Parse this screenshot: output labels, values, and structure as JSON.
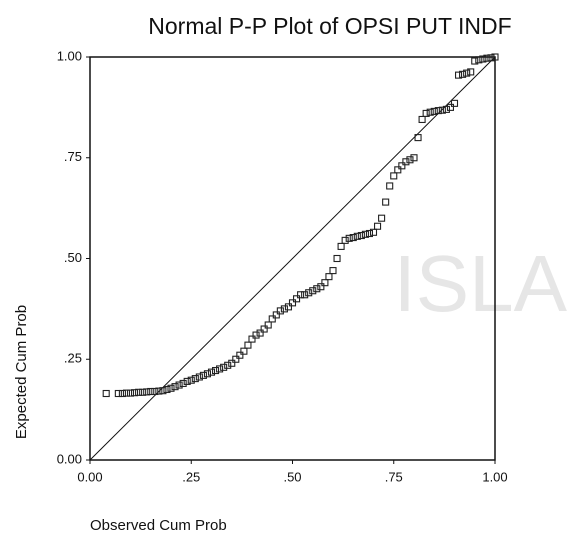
{
  "chart_data": {
    "type": "scatter",
    "title": "Normal P-P Plot of OPSI PUT INDF",
    "x_label": "Observed Cum Prob",
    "y_label": "Expected Cum Prob",
    "watermark": "ISLA",
    "color": "#222222",
    "xlim": [
      0,
      1
    ],
    "ylim": [
      0,
      1
    ],
    "xticks": [
      {
        "value": 0,
        "label": "0.00"
      },
      {
        "value": 0.25,
        "label": ".25"
      },
      {
        "value": 0.5,
        "label": ".50"
      },
      {
        "value": 0.75,
        "label": ".75"
      },
      {
        "value": 1,
        "label": "1.00"
      }
    ],
    "yticks": [
      {
        "value": 0,
        "label": "0.00"
      },
      {
        "value": 0.25,
        "label": ".25"
      },
      {
        "value": 0.5,
        "label": ".50"
      },
      {
        "value": 0.75,
        "label": ".75"
      },
      {
        "value": 1,
        "label": "1.00"
      }
    ],
    "series": [
      {
        "name": "OPSI PUT INDF",
        "x": [
          0.04,
          0.07,
          0.08,
          0.09,
          0.1,
          0.11,
          0.12,
          0.13,
          0.14,
          0.15,
          0.16,
          0.17,
          0.18,
          0.19,
          0.2,
          0.21,
          0.22,
          0.23,
          0.24,
          0.25,
          0.26,
          0.27,
          0.28,
          0.29,
          0.3,
          0.31,
          0.32,
          0.33,
          0.34,
          0.35,
          0.36,
          0.37,
          0.38,
          0.39,
          0.4,
          0.41,
          0.42,
          0.43,
          0.44,
          0.45,
          0.46,
          0.47,
          0.48,
          0.49,
          0.5,
          0.51,
          0.52,
          0.53,
          0.54,
          0.55,
          0.56,
          0.57,
          0.58,
          0.59,
          0.6,
          0.61,
          0.62,
          0.63,
          0.64,
          0.65,
          0.66,
          0.67,
          0.68,
          0.69,
          0.7,
          0.71,
          0.72,
          0.73,
          0.74,
          0.75,
          0.76,
          0.77,
          0.78,
          0.79,
          0.8,
          0.81,
          0.82,
          0.83,
          0.84,
          0.85,
          0.86,
          0.87,
          0.88,
          0.89,
          0.9,
          0.91,
          0.92,
          0.93,
          0.94,
          0.95,
          0.96,
          0.97,
          0.98,
          0.99,
          1.0
        ],
        "values": [
          0.165,
          0.165,
          0.165,
          0.166,
          0.166,
          0.167,
          0.168,
          0.168,
          0.169,
          0.17,
          0.17,
          0.171,
          0.172,
          0.175,
          0.178,
          0.182,
          0.186,
          0.19,
          0.195,
          0.198,
          0.202,
          0.206,
          0.21,
          0.214,
          0.218,
          0.222,
          0.226,
          0.23,
          0.235,
          0.24,
          0.25,
          0.26,
          0.27,
          0.285,
          0.3,
          0.31,
          0.315,
          0.325,
          0.335,
          0.35,
          0.36,
          0.37,
          0.375,
          0.38,
          0.39,
          0.4,
          0.41,
          0.41,
          0.415,
          0.42,
          0.425,
          0.43,
          0.44,
          0.455,
          0.47,
          0.5,
          0.53,
          0.545,
          0.55,
          0.552,
          0.555,
          0.557,
          0.56,
          0.562,
          0.565,
          0.58,
          0.6,
          0.64,
          0.68,
          0.705,
          0.72,
          0.73,
          0.74,
          0.745,
          0.75,
          0.8,
          0.845,
          0.86,
          0.863,
          0.865,
          0.867,
          0.868,
          0.87,
          0.875,
          0.885,
          0.955,
          0.957,
          0.96,
          0.963,
          0.99,
          0.993,
          0.995,
          0.997,
          0.998,
          1.0
        ]
      }
    ]
  }
}
